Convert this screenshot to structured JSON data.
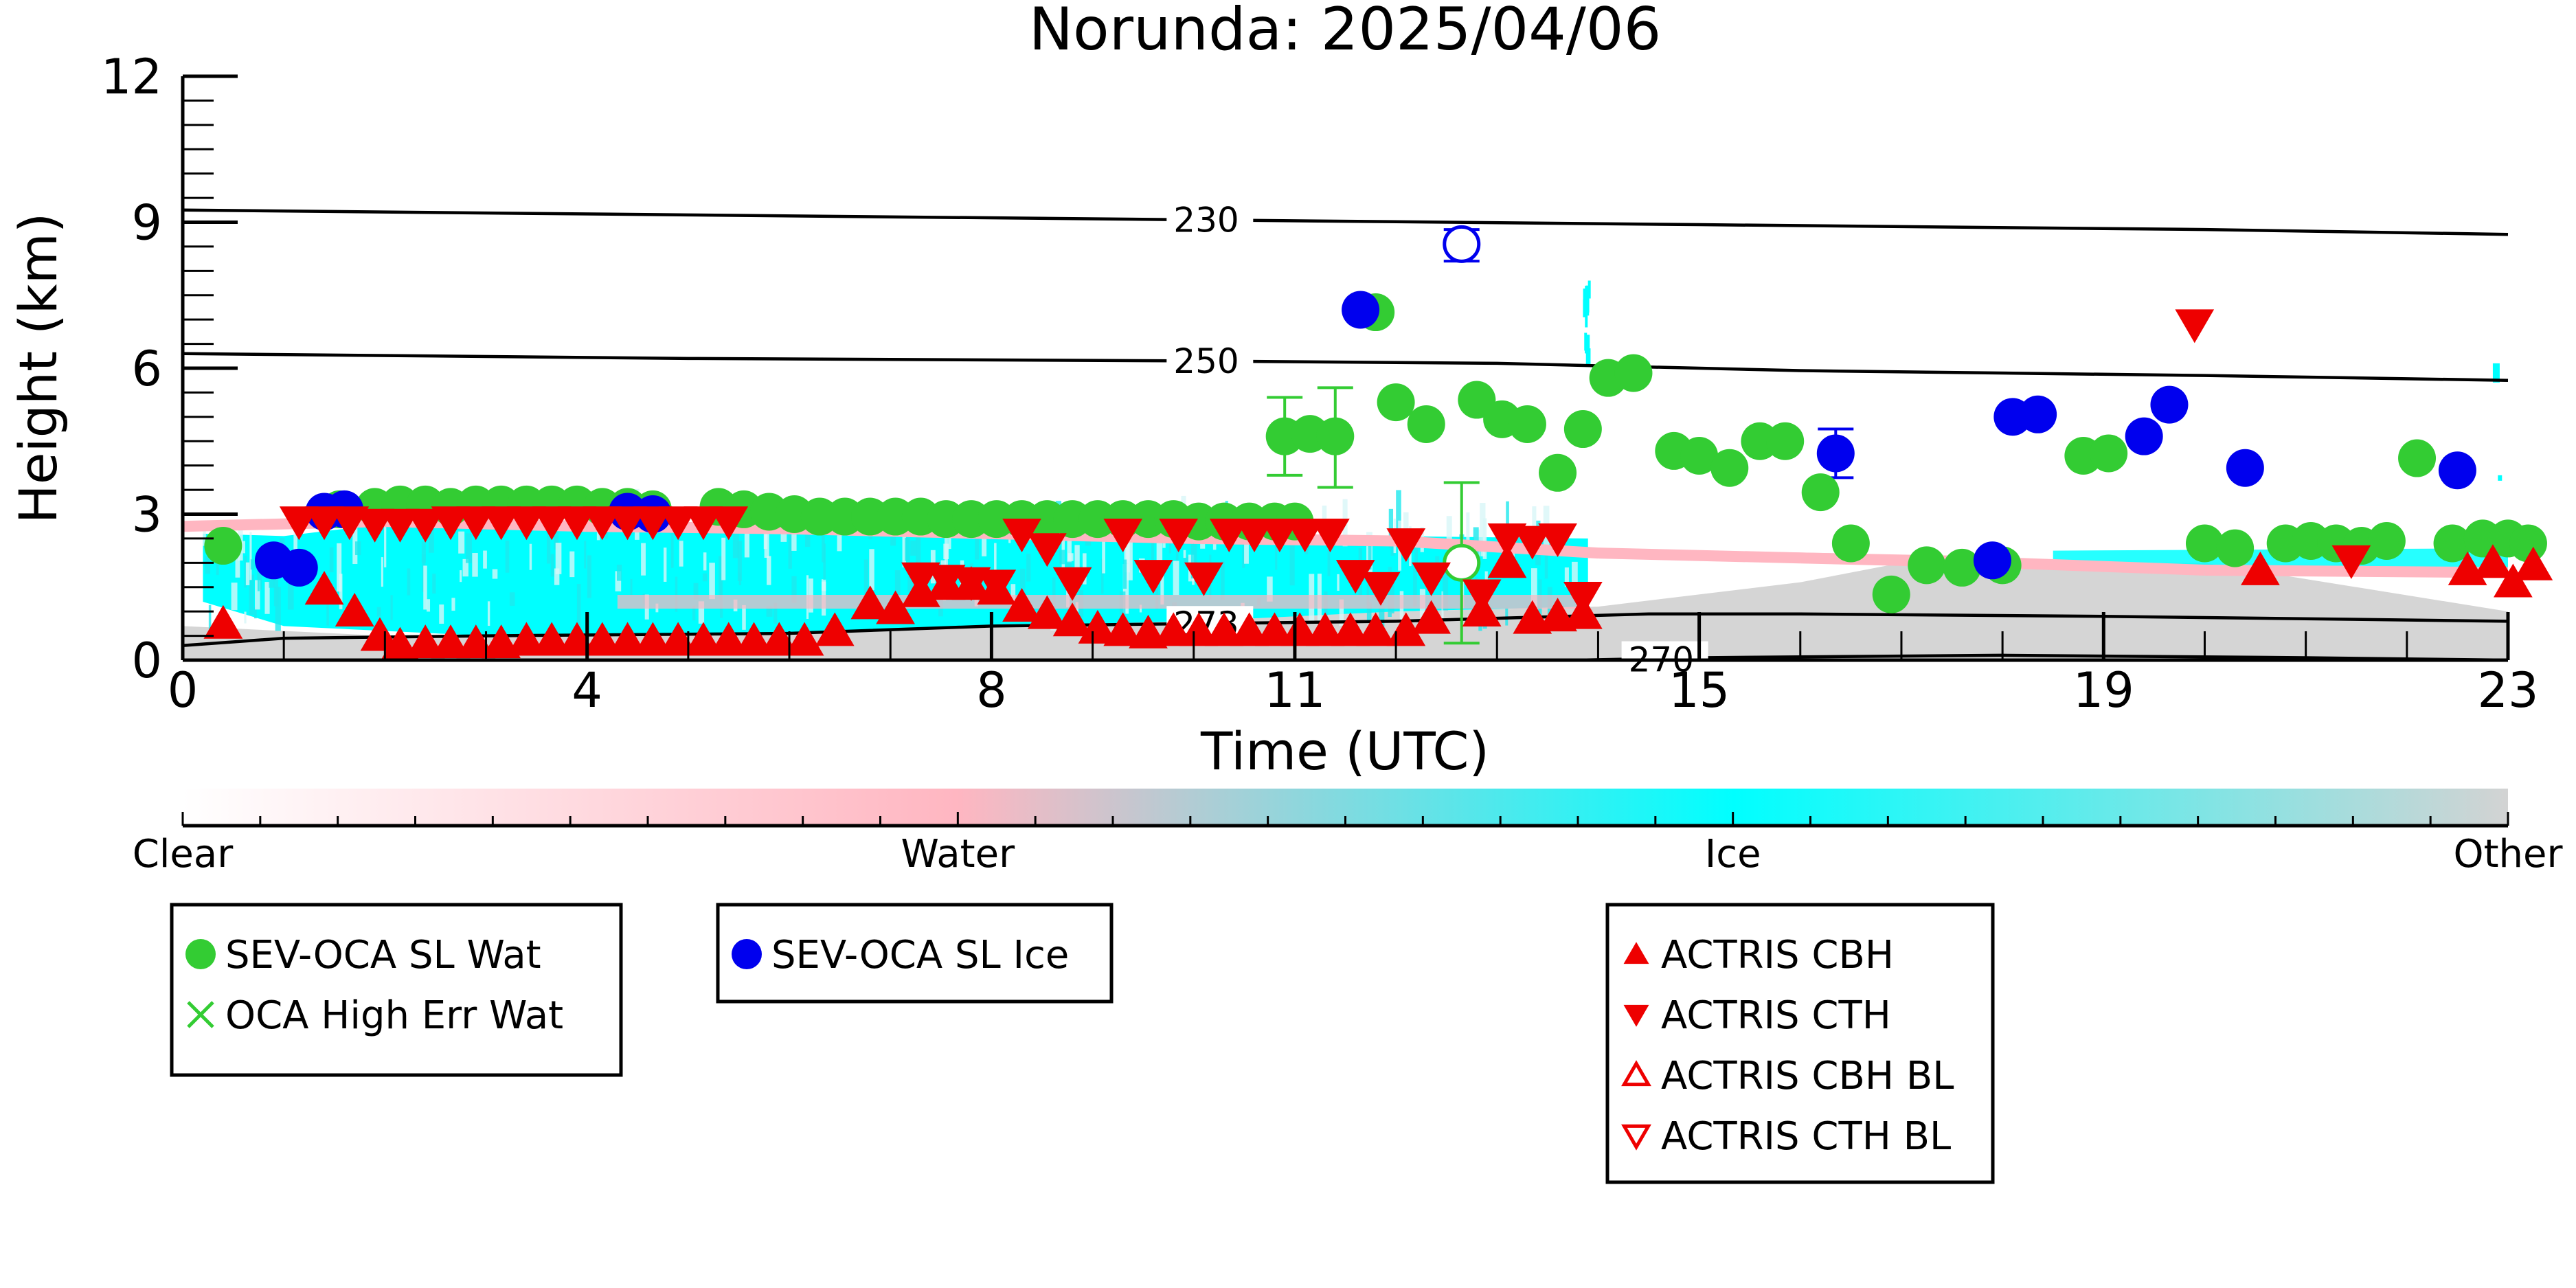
{
  "chart_data": {
    "type": "scatter",
    "title": "Norunda: 2025/04/06",
    "xlabel": "Time (UTC)",
    "ylabel": "Height (km)",
    "xlim": [
      0,
      23
    ],
    "ylim": [
      0,
      12
    ],
    "xticks": [
      0,
      4,
      8,
      11,
      15,
      19,
      23
    ],
    "yticks": [
      0,
      3,
      6,
      9,
      12
    ],
    "colorbar": {
      "labels": [
        "Clear",
        "Water",
        "Ice",
        "Other"
      ],
      "colors": [
        "#ffffff",
        "#ffb6c1",
        "#00ffff",
        "#d3d3d3"
      ]
    },
    "contours": [
      {
        "label": "230",
        "points": [
          [
            0,
            9.25
          ],
          [
            5,
            9.15
          ],
          [
            10,
            9.05
          ],
          [
            15,
            8.95
          ],
          [
            20,
            8.85
          ],
          [
            23,
            8.75
          ]
        ],
        "label_x": 9.8
      },
      {
        "label": "250",
        "points": [
          [
            0,
            6.3
          ],
          [
            5,
            6.2
          ],
          [
            10,
            6.15
          ],
          [
            13,
            6.1
          ],
          [
            16,
            5.95
          ],
          [
            20,
            5.85
          ],
          [
            23,
            5.75
          ]
        ],
        "label_x": 9.8
      },
      {
        "label": "273",
        "points": [
          [
            0,
            0.3
          ],
          [
            1,
            0.45
          ],
          [
            3,
            0.5
          ],
          [
            6,
            0.55
          ],
          [
            8,
            0.7
          ],
          [
            10,
            0.75
          ],
          [
            12,
            0.8
          ],
          [
            14.5,
            0.95
          ],
          [
            16,
            0.95
          ],
          [
            19,
            0.9
          ],
          [
            23,
            0.8
          ]
        ],
        "label_x": 9.8
      },
      {
        "label": "270",
        "points": [
          [
            13.8,
            0.0
          ],
          [
            15,
            0.05
          ],
          [
            18,
            0.1
          ],
          [
            21,
            0.05
          ],
          [
            23,
            0.0
          ]
        ],
        "label_x": 14.3
      }
    ],
    "series": [
      {
        "name": "SEV-OCA SL Wat",
        "color": "#33cc33",
        "marker": "circle",
        "points": [
          [
            0.4,
            2.35
          ],
          [
            1.55,
            3.1
          ],
          [
            1.9,
            3.15
          ],
          [
            2.15,
            3.2
          ],
          [
            2.4,
            3.2
          ],
          [
            2.65,
            3.15
          ],
          [
            2.9,
            3.2
          ],
          [
            3.15,
            3.2
          ],
          [
            3.4,
            3.2
          ],
          [
            3.65,
            3.2
          ],
          [
            3.9,
            3.2
          ],
          [
            4.15,
            3.15
          ],
          [
            4.4,
            3.15
          ],
          [
            4.65,
            3.1
          ],
          [
            5.3,
            3.15
          ],
          [
            5.55,
            3.1
          ],
          [
            5.8,
            3.05
          ],
          [
            6.05,
            3.0
          ],
          [
            6.3,
            2.95
          ],
          [
            6.55,
            2.95
          ],
          [
            6.8,
            2.95
          ],
          [
            7.05,
            2.95
          ],
          [
            7.3,
            2.95
          ],
          [
            7.55,
            2.9
          ],
          [
            7.8,
            2.9
          ],
          [
            8.05,
            2.9
          ],
          [
            8.3,
            2.9
          ],
          [
            8.55,
            2.9
          ],
          [
            8.8,
            2.9
          ],
          [
            9.05,
            2.9
          ],
          [
            9.3,
            2.9
          ],
          [
            9.55,
            2.9
          ],
          [
            9.8,
            2.9
          ],
          [
            10.05,
            2.85
          ],
          [
            10.3,
            2.85
          ],
          [
            10.55,
            2.85
          ],
          [
            10.8,
            2.85
          ],
          [
            11.0,
            2.85
          ],
          [
            10.9,
            4.6
          ],
          [
            11.15,
            4.65
          ],
          [
            11.4,
            4.6
          ],
          [
            11.8,
            7.15
          ],
          [
            12.0,
            5.3
          ],
          [
            12.3,
            4.85
          ],
          [
            12.8,
            5.35
          ],
          [
            13.05,
            4.95
          ],
          [
            13.3,
            4.85
          ],
          [
            13.6,
            3.85
          ],
          [
            13.85,
            4.75
          ],
          [
            14.1,
            5.8
          ],
          [
            14.35,
            5.9
          ],
          [
            14.75,
            4.3
          ],
          [
            15.0,
            4.2
          ],
          [
            15.3,
            3.95
          ],
          [
            15.6,
            4.5
          ],
          [
            15.85,
            4.5
          ],
          [
            16.2,
            3.45
          ],
          [
            16.5,
            2.4
          ],
          [
            16.9,
            1.35
          ],
          [
            17.25,
            1.95
          ],
          [
            17.6,
            1.9
          ],
          [
            18.0,
            1.95
          ],
          [
            18.8,
            4.2
          ],
          [
            19.05,
            4.25
          ],
          [
            20.0,
            2.4
          ],
          [
            20.3,
            2.3
          ],
          [
            20.8,
            2.4
          ],
          [
            21.05,
            2.45
          ],
          [
            21.3,
            2.4
          ],
          [
            21.55,
            2.35
          ],
          [
            21.8,
            2.45
          ],
          [
            22.1,
            4.15
          ],
          [
            22.45,
            2.4
          ],
          [
            22.75,
            2.5
          ],
          [
            23.0,
            2.5
          ],
          [
            23.2,
            2.4
          ]
        ]
      },
      {
        "name": "SEV-OCA SL Wat (open)",
        "color": "#33cc33",
        "marker": "circle-open",
        "points": [
          [
            12.65,
            2.0
          ]
        ]
      },
      {
        "name": "SEV-OCA SL Ice",
        "color": "#0000ee",
        "marker": "circle",
        "points": [
          [
            0.9,
            2.05
          ],
          [
            1.15,
            1.9
          ],
          [
            1.4,
            3.05
          ],
          [
            1.6,
            3.1
          ],
          [
            4.4,
            3.05
          ],
          [
            4.65,
            3.0
          ],
          [
            11.65,
            7.2
          ],
          [
            16.35,
            4.25
          ],
          [
            17.9,
            2.05
          ],
          [
            18.1,
            5.0
          ],
          [
            18.35,
            5.05
          ],
          [
            19.4,
            4.6
          ],
          [
            19.65,
            5.25
          ],
          [
            20.4,
            3.95
          ],
          [
            22.5,
            3.9
          ]
        ]
      },
      {
        "name": "SEV-OCA SL Ice (open)",
        "color": "#0000ee",
        "marker": "circle-open",
        "points": [
          [
            12.65,
            8.55
          ]
        ]
      },
      {
        "name": "ACTRIS CBH",
        "color": "#ee0000",
        "marker": "triangle-up",
        "points": [
          [
            0.4,
            0.75
          ],
          [
            1.4,
            1.45
          ],
          [
            1.7,
            1.0
          ],
          [
            1.95,
            0.5
          ],
          [
            2.15,
            0.3
          ],
          [
            2.4,
            0.35
          ],
          [
            2.65,
            0.35
          ],
          [
            2.9,
            0.35
          ],
          [
            3.15,
            0.35
          ],
          [
            3.4,
            0.4
          ],
          [
            3.65,
            0.4
          ],
          [
            3.9,
            0.4
          ],
          [
            4.15,
            0.4
          ],
          [
            4.4,
            0.4
          ],
          [
            4.65,
            0.4
          ],
          [
            4.9,
            0.4
          ],
          [
            5.15,
            0.4
          ],
          [
            5.4,
            0.4
          ],
          [
            5.65,
            0.4
          ],
          [
            5.9,
            0.4
          ],
          [
            6.15,
            0.4
          ],
          [
            6.45,
            0.6
          ],
          [
            6.8,
            1.15
          ],
          [
            7.05,
            1.05
          ],
          [
            7.3,
            1.4
          ],
          [
            7.55,
            1.55
          ],
          [
            7.8,
            1.55
          ],
          [
            8.05,
            1.45
          ],
          [
            8.3,
            1.1
          ],
          [
            8.55,
            0.95
          ],
          [
            8.8,
            0.8
          ],
          [
            9.05,
            0.65
          ],
          [
            9.3,
            0.6
          ],
          [
            9.55,
            0.55
          ],
          [
            9.8,
            0.6
          ],
          [
            10.05,
            0.6
          ],
          [
            10.3,
            0.6
          ],
          [
            10.55,
            0.6
          ],
          [
            10.8,
            0.6
          ],
          [
            11.05,
            0.6
          ],
          [
            11.3,
            0.6
          ],
          [
            11.55,
            0.6
          ],
          [
            11.8,
            0.6
          ],
          [
            12.1,
            0.6
          ],
          [
            12.35,
            0.85
          ],
          [
            12.85,
            1.0
          ],
          [
            13.1,
            2.0
          ],
          [
            13.35,
            0.85
          ],
          [
            13.6,
            0.9
          ],
          [
            13.85,
            0.95
          ],
          [
            20.55,
            1.85
          ],
          [
            22.6,
            1.85
          ],
          [
            22.85,
            2.0
          ],
          [
            23.05,
            1.6
          ],
          [
            23.25,
            1.95
          ]
        ]
      },
      {
        "name": "ACTRIS CTH",
        "color": "#ee0000",
        "marker": "triangle-down",
        "points": [
          [
            1.15,
            2.85
          ],
          [
            1.4,
            2.85
          ],
          [
            1.65,
            2.85
          ],
          [
            1.9,
            2.8
          ],
          [
            2.15,
            2.8
          ],
          [
            2.4,
            2.8
          ],
          [
            2.65,
            2.85
          ],
          [
            2.9,
            2.85
          ],
          [
            3.15,
            2.85
          ],
          [
            3.4,
            2.85
          ],
          [
            3.65,
            2.85
          ],
          [
            3.9,
            2.85
          ],
          [
            4.15,
            2.85
          ],
          [
            4.4,
            2.85
          ],
          [
            4.65,
            2.85
          ],
          [
            4.9,
            2.85
          ],
          [
            5.15,
            2.85
          ],
          [
            5.4,
            2.85
          ],
          [
            7.3,
            1.7
          ],
          [
            7.55,
            1.65
          ],
          [
            7.8,
            1.6
          ],
          [
            8.05,
            1.55
          ],
          [
            8.3,
            2.6
          ],
          [
            8.55,
            2.3
          ],
          [
            8.8,
            1.6
          ],
          [
            9.3,
            2.6
          ],
          [
            9.6,
            1.75
          ],
          [
            9.85,
            2.6
          ],
          [
            10.1,
            1.7
          ],
          [
            10.35,
            2.6
          ],
          [
            10.6,
            2.6
          ],
          [
            10.85,
            2.6
          ],
          [
            11.1,
            2.6
          ],
          [
            11.35,
            2.6
          ],
          [
            11.6,
            1.75
          ],
          [
            11.85,
            1.5
          ],
          [
            12.1,
            2.4
          ],
          [
            12.35,
            1.7
          ],
          [
            12.85,
            1.35
          ],
          [
            13.1,
            2.5
          ],
          [
            13.35,
            2.45
          ],
          [
            13.6,
            2.5
          ],
          [
            13.85,
            1.3
          ],
          [
            19.9,
            6.9
          ],
          [
            21.45,
            2.05
          ]
        ]
      }
    ],
    "error_bars": [
      {
        "x": 10.9,
        "low": 3.8,
        "high": 5.4,
        "color": "#33cc33"
      },
      {
        "x": 11.4,
        "low": 3.55,
        "high": 5.6,
        "color": "#33cc33"
      },
      {
        "x": 12.65,
        "low": 0.35,
        "high": 3.65,
        "color": "#33cc33"
      },
      {
        "x": 12.65,
        "low": 8.2,
        "high": 8.85,
        "color": "#0000ee"
      },
      {
        "x": 16.35,
        "low": 3.75,
        "high": 4.75,
        "color": "#0000ee"
      }
    ]
  },
  "legends": [
    {
      "items": [
        {
          "label": "SEV-OCA SL Wat",
          "marker": "circle",
          "color": "#33cc33"
        },
        {
          "label": "OCA High Err Wat",
          "marker": "x",
          "color": "#33cc33"
        }
      ]
    },
    {
      "items": [
        {
          "label": "SEV-OCA SL Ice",
          "marker": "circle",
          "color": "#0000ee"
        }
      ]
    },
    {
      "items": [
        {
          "label": "ACTRIS CBH",
          "marker": "triangle-up",
          "color": "#ee0000"
        },
        {
          "label": "ACTRIS CTH",
          "marker": "triangle-down",
          "color": "#ee0000"
        },
        {
          "label": "ACTRIS CBH BL",
          "marker": "triangle-up-open",
          "color": "#ee0000"
        },
        {
          "label": "ACTRIS CTH BL",
          "marker": "triangle-down-open",
          "color": "#ee0000"
        }
      ]
    }
  ]
}
